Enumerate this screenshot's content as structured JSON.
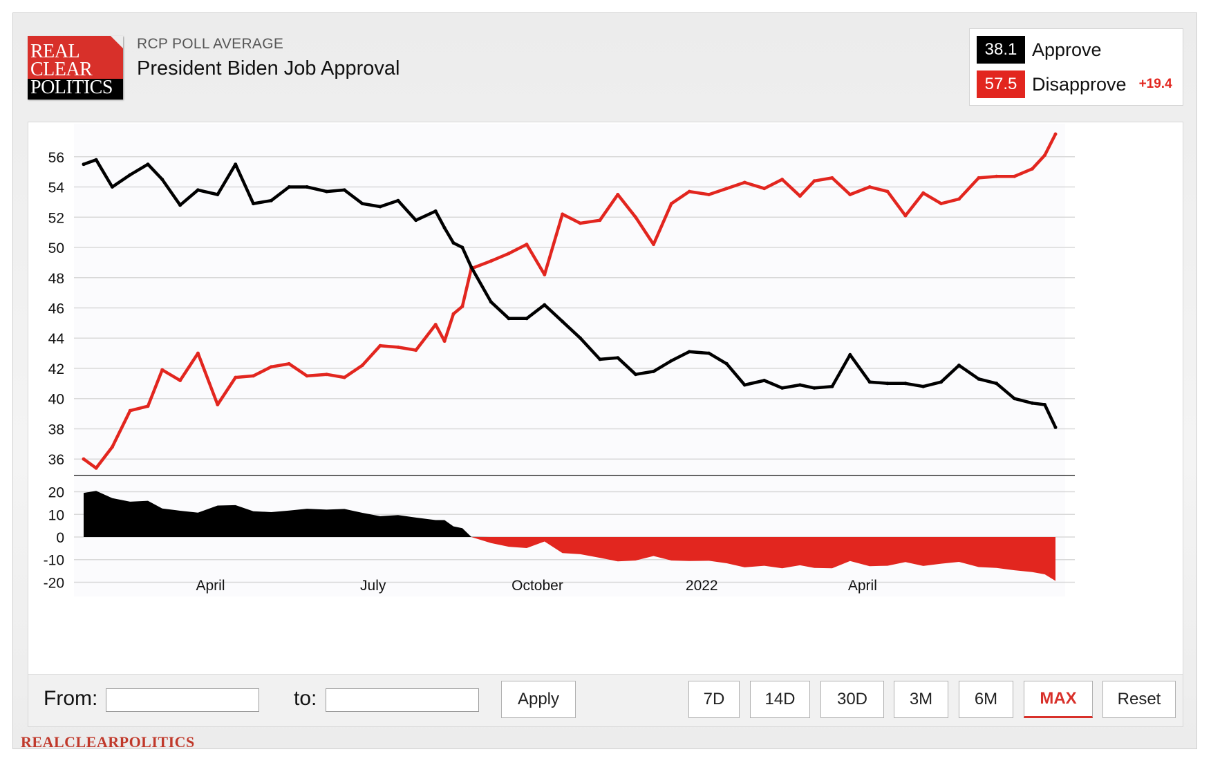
{
  "logo": {
    "line1": "REAL",
    "line2": "CLEAR",
    "line3": "POLITICS"
  },
  "header": {
    "supertitle": "RCP POLL AVERAGE",
    "title": "President Biden Job Approval"
  },
  "legend": {
    "approve": {
      "value": "38.1",
      "label": "Approve",
      "color": "#000000"
    },
    "disapprove": {
      "value": "57.5",
      "label": "Disapprove",
      "color": "#e2261f"
    },
    "spread": "+19.4"
  },
  "controls": {
    "from_label": "From:",
    "to_label": "to:",
    "from_value": "",
    "to_value": "",
    "apply": "Apply",
    "ranges": [
      "7D",
      "14D",
      "30D",
      "3M",
      "6M",
      "MAX",
      "Reset"
    ],
    "active_range": "MAX"
  },
  "footer": {
    "brand": "REALCLEARPOLITICS"
  },
  "chart_data": [
    {
      "type": "line",
      "x_unit": "date",
      "x_range": [
        "2021-01-20",
        "2022-07-18"
      ],
      "x_tick_labels": [
        "April",
        "July",
        "October",
        "2022",
        "April"
      ],
      "x_tick_dates": [
        "2021-04-01",
        "2021-07-01",
        "2021-10-01",
        "2022-01-01",
        "2022-04-01"
      ],
      "y_ticks": [
        36,
        38,
        40,
        42,
        44,
        46,
        48,
        50,
        52,
        54,
        56
      ],
      "ylim": [
        34.5,
        57.5
      ],
      "grid": true,
      "series": [
        {
          "name": "Approve",
          "color": "#000000",
          "x": [
            "2021-01-20",
            "2021-01-27",
            "2021-02-05",
            "2021-02-15",
            "2021-02-25",
            "2021-03-05",
            "2021-03-15",
            "2021-03-25",
            "2021-04-05",
            "2021-04-15",
            "2021-04-25",
            "2021-05-05",
            "2021-05-15",
            "2021-05-25",
            "2021-06-05",
            "2021-06-15",
            "2021-06-25",
            "2021-07-05",
            "2021-07-15",
            "2021-07-25",
            "2021-08-05",
            "2021-08-10",
            "2021-08-15",
            "2021-08-20",
            "2021-08-25",
            "2021-09-05",
            "2021-09-15",
            "2021-09-25",
            "2021-10-05",
            "2021-10-15",
            "2021-10-25",
            "2021-11-05",
            "2021-11-15",
            "2021-11-25",
            "2021-12-05",
            "2021-12-15",
            "2021-12-25",
            "2022-01-05",
            "2022-01-15",
            "2022-01-25",
            "2022-02-05",
            "2022-02-15",
            "2022-02-25",
            "2022-03-05",
            "2022-03-15",
            "2022-03-25",
            "2022-04-05",
            "2022-04-15",
            "2022-04-25",
            "2022-05-05",
            "2022-05-15",
            "2022-05-25",
            "2022-06-05",
            "2022-06-15",
            "2022-06-25",
            "2022-07-05",
            "2022-07-12",
            "2022-07-18"
          ],
          "y": [
            55.5,
            55.8,
            54,
            54.8,
            55.5,
            54.5,
            52.8,
            53.8,
            53.5,
            55.5,
            52.9,
            53.1,
            54,
            54,
            53.7,
            53.8,
            52.9,
            52.7,
            53.1,
            51.8,
            52.4,
            51.3,
            50.3,
            50.0,
            48.7,
            46.4,
            45.3,
            45.3,
            46.2,
            45.1,
            44.0,
            42.6,
            42.7,
            41.6,
            41.8,
            42.5,
            43.1,
            43.0,
            42.3,
            40.9,
            41.2,
            40.7,
            40.9,
            40.7,
            40.8,
            42.9,
            41.1,
            41.0,
            41.0,
            40.8,
            41.1,
            42.2,
            41.3,
            41.0,
            40.0,
            39.7,
            39.6,
            38.1
          ]
        },
        {
          "name": "Disapprove",
          "color": "#e2261f",
          "x": [
            "2021-01-20",
            "2021-01-27",
            "2021-02-05",
            "2021-02-15",
            "2021-02-25",
            "2021-03-05",
            "2021-03-15",
            "2021-03-25",
            "2021-04-05",
            "2021-04-15",
            "2021-04-25",
            "2021-05-05",
            "2021-05-15",
            "2021-05-25",
            "2021-06-05",
            "2021-06-15",
            "2021-06-25",
            "2021-07-05",
            "2021-07-15",
            "2021-07-25",
            "2021-08-05",
            "2021-08-10",
            "2021-08-15",
            "2021-08-20",
            "2021-08-25",
            "2021-09-05",
            "2021-09-15",
            "2021-09-25",
            "2021-10-05",
            "2021-10-15",
            "2021-10-25",
            "2021-11-05",
            "2021-11-15",
            "2021-11-25",
            "2021-12-05",
            "2021-12-15",
            "2021-12-25",
            "2022-01-05",
            "2022-01-15",
            "2022-01-25",
            "2022-02-05",
            "2022-02-15",
            "2022-02-25",
            "2022-03-05",
            "2022-03-15",
            "2022-03-25",
            "2022-04-05",
            "2022-04-15",
            "2022-04-25",
            "2022-05-05",
            "2022-05-15",
            "2022-05-25",
            "2022-06-05",
            "2022-06-15",
            "2022-06-25",
            "2022-07-05",
            "2022-07-12",
            "2022-07-18"
          ],
          "y": [
            36.0,
            35.4,
            36.8,
            39.2,
            39.5,
            41.9,
            41.2,
            43.0,
            39.6,
            41.4,
            41.5,
            42.1,
            42.3,
            41.5,
            41.6,
            41.4,
            42.2,
            43.5,
            43.4,
            43.2,
            44.9,
            43.8,
            45.6,
            46.1,
            48.6,
            49.1,
            49.6,
            50.2,
            48.2,
            52.2,
            51.6,
            51.8,
            53.5,
            52.0,
            50.2,
            52.9,
            53.7,
            53.5,
            53.9,
            54.3,
            53.9,
            54.5,
            53.4,
            54.4,
            54.6,
            53.5,
            54.0,
            53.7,
            52.1,
            53.6,
            52.9,
            53.2,
            54.6,
            54.7,
            54.7,
            55.2,
            56.1,
            57.5
          ]
        }
      ]
    },
    {
      "type": "area",
      "x_unit": "date",
      "y_ticks": [
        20,
        10,
        0,
        -10,
        -20
      ],
      "ylim": [
        -22,
        22
      ],
      "grid": true,
      "series": [
        {
          "color_positive": "#000000",
          "color_negative": "#e2261f",
          "x": [
            "2021-01-20",
            "2021-01-27",
            "2021-02-05",
            "2021-02-15",
            "2021-02-25",
            "2021-03-05",
            "2021-03-15",
            "2021-03-25",
            "2021-04-05",
            "2021-04-15",
            "2021-04-25",
            "2021-05-05",
            "2021-05-15",
            "2021-05-25",
            "2021-06-05",
            "2021-06-15",
            "2021-06-25",
            "2021-07-05",
            "2021-07-15",
            "2021-07-25",
            "2021-08-05",
            "2021-08-10",
            "2021-08-15",
            "2021-08-20",
            "2021-08-25",
            "2021-09-05",
            "2021-09-15",
            "2021-09-25",
            "2021-10-05",
            "2021-10-15",
            "2021-10-25",
            "2021-11-05",
            "2021-11-15",
            "2021-11-25",
            "2021-12-05",
            "2021-12-15",
            "2021-12-25",
            "2022-01-05",
            "2022-01-15",
            "2022-01-25",
            "2022-02-05",
            "2022-02-15",
            "2022-02-25",
            "2022-03-05",
            "2022-03-15",
            "2022-03-25",
            "2022-04-05",
            "2022-04-15",
            "2022-04-25",
            "2022-05-05",
            "2022-05-15",
            "2022-05-25",
            "2022-06-05",
            "2022-06-15",
            "2022-06-25",
            "2022-07-05",
            "2022-07-12",
            "2022-07-18"
          ],
          "y": [
            19.5,
            20.4,
            17.2,
            15.6,
            16.0,
            12.6,
            11.6,
            10.8,
            13.9,
            14.1,
            11.4,
            11.0,
            11.7,
            12.5,
            12.1,
            12.4,
            10.7,
            9.2,
            9.7,
            8.6,
            7.5,
            7.5,
            4.7,
            3.9,
            0.1,
            -2.7,
            -4.3,
            -4.9,
            -2.0,
            -7.1,
            -7.6,
            -9.2,
            -10.8,
            -10.4,
            -8.4,
            -10.4,
            -10.6,
            -10.5,
            -11.6,
            -13.4,
            -12.7,
            -13.8,
            -12.5,
            -13.7,
            -13.8,
            -10.6,
            -12.9,
            -12.7,
            -11.1,
            -12.8,
            -11.8,
            -11.0,
            -13.3,
            -13.7,
            -14.7,
            -15.5,
            -16.5,
            -19.4
          ]
        }
      ]
    }
  ]
}
